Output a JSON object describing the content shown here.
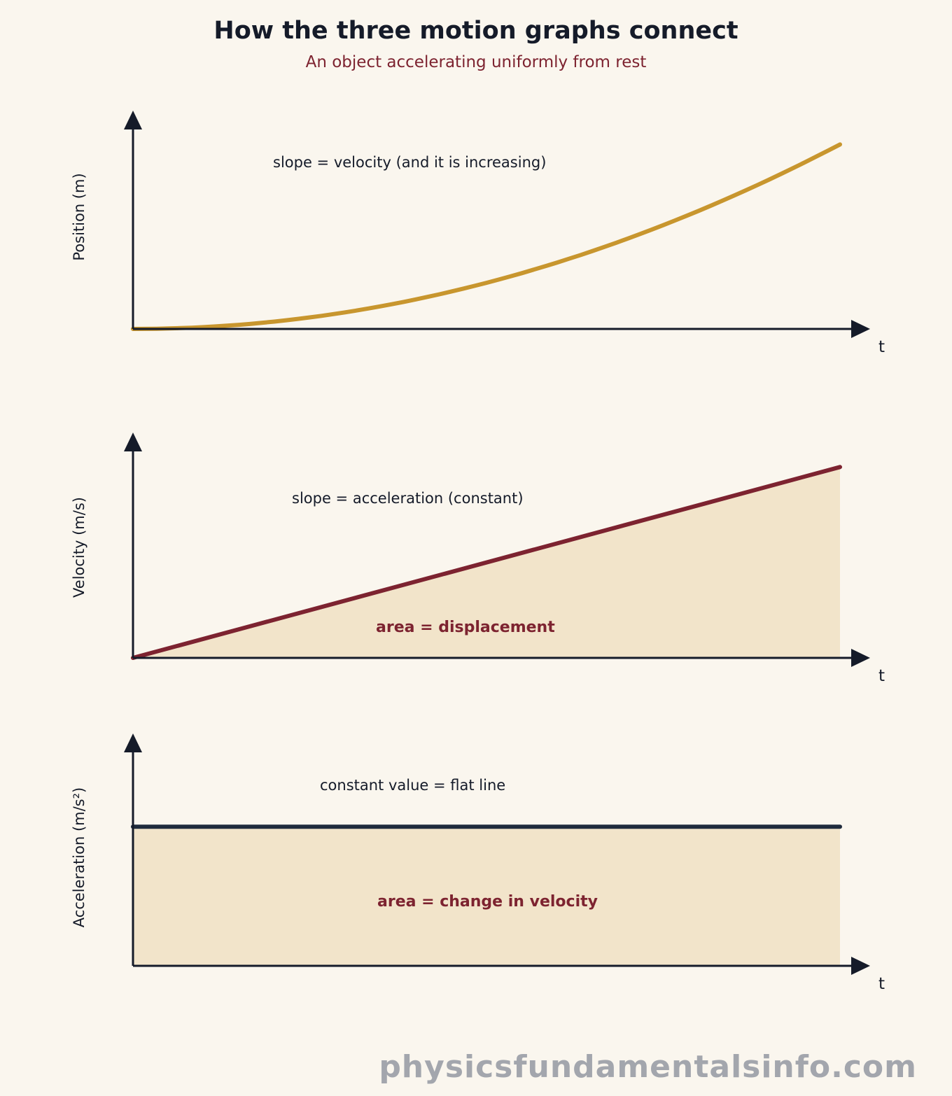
{
  "header": {
    "title": "How the three motion graphs connect",
    "subtitle": "An object accelerating uniformly from rest"
  },
  "colors": {
    "background": "#faf6ee",
    "position_curve": "#c8962e",
    "velocity_line": "#7d2330",
    "acceleration_line": "#1f2b3d",
    "area_fill": "#f2e4ca",
    "axis": "#151b29"
  },
  "chart_data": [
    {
      "type": "line",
      "ylabel": "Position (m)",
      "xlabel": "t",
      "annotation": "slope = velocity (and it is increasing)",
      "series": [
        {
          "x": [
            0,
            0.1,
            0.2,
            0.3,
            0.4,
            0.5,
            0.6,
            0.7,
            0.8,
            0.9,
            1.0
          ],
          "y": [
            0,
            0.01,
            0.04,
            0.09,
            0.16,
            0.25,
            0.36,
            0.49,
            0.64,
            0.81,
            1.0
          ]
        }
      ],
      "xlim": [
        0,
        1
      ],
      "ylim": [
        0,
        1.1
      ]
    },
    {
      "type": "area",
      "ylabel": "Velocity (m/s)",
      "xlabel": "t",
      "annotation": "slope = acceleration (constant)",
      "area_label": "area = displacement",
      "series": [
        {
          "x": [
            0,
            1
          ],
          "y": [
            0,
            1
          ]
        }
      ],
      "xlim": [
        0,
        1
      ],
      "ylim": [
        0,
        1.1
      ]
    },
    {
      "type": "area",
      "ylabel": "Acceleration (m/s²)",
      "xlabel": "t",
      "annotation": "constant value = flat line",
      "area_label": "area = change in velocity",
      "series": [
        {
          "x": [
            0,
            1
          ],
          "y": [
            1,
            1
          ]
        }
      ],
      "xlim": [
        0,
        1
      ],
      "ylim": [
        0,
        1.56
      ]
    }
  ],
  "watermark": "physicsfundamentalsinfo.com"
}
